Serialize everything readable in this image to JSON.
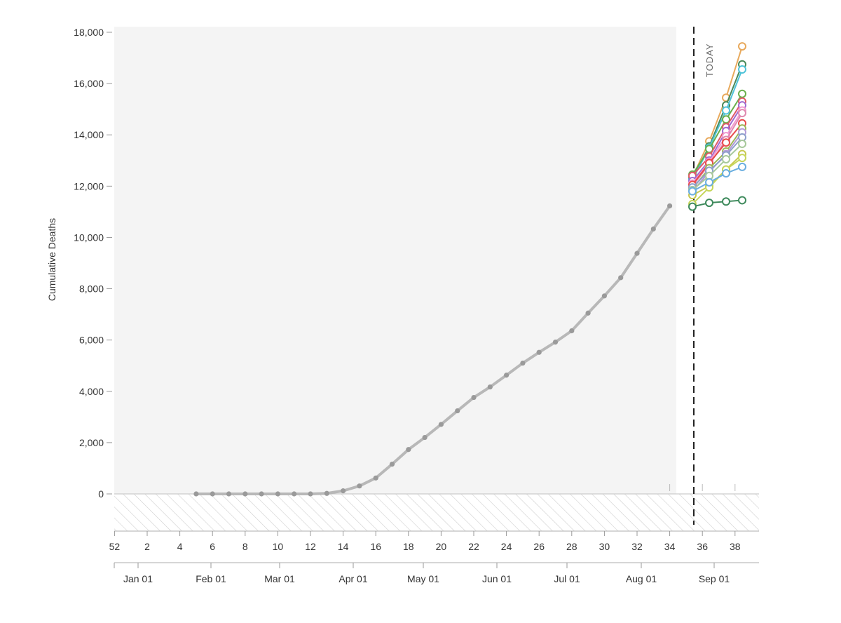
{
  "chart_data": {
    "type": "line",
    "ylabel": "Cumulative Deaths",
    "ylim": [
      -1450,
      18200
    ],
    "y_ticks": [
      0,
      2000,
      4000,
      6000,
      8000,
      10000,
      12000,
      14000,
      16000,
      18000
    ],
    "y_tick_labels": [
      "0",
      "2,000",
      "4,000",
      "6,000",
      "8,000",
      "10,000",
      "12,000",
      "14,000",
      "16,000",
      "18,000"
    ],
    "x_axis_week_ticks": [
      "52",
      "2",
      "4",
      "6",
      "8",
      "10",
      "12",
      "14",
      "16",
      "18",
      "20",
      "22",
      "24",
      "26",
      "28",
      "30",
      "32",
      "34",
      "36",
      "38"
    ],
    "x_axis_month_ticks": [
      "Jan 01",
      "Feb 01",
      "Mar 01",
      "Apr 01",
      "May 01",
      "Jun 01",
      "Jul 01",
      "Aug 01",
      "Sep 01"
    ],
    "today_label": "TODAY",
    "today_week": 35,
    "observed": {
      "name": "",
      "color": "#b8b8b8",
      "weeks": [
        5,
        6,
        7,
        8,
        9,
        10,
        11,
        12,
        13,
        14,
        15,
        16,
        17,
        18,
        19,
        20,
        21,
        22,
        23,
        24,
        25,
        26,
        27,
        28,
        29,
        30,
        31,
        32,
        33,
        34
      ],
      "values": [
        0,
        0,
        0,
        0,
        0,
        0,
        0,
        0,
        20,
        120,
        310,
        620,
        1160,
        1730,
        2200,
        2710,
        3240,
        3760,
        4170,
        4630,
        5100,
        5520,
        5920,
        6360,
        7050,
        7720,
        8430,
        9380,
        10330,
        11230
      ]
    },
    "forecast_weeks": [
      35,
      36,
      37,
      38
    ],
    "forecasts": [
      {
        "color": "#e8a95c",
        "values": [
          12350,
          13750,
          15450,
          17450
        ]
      },
      {
        "color": "#4a8a5a",
        "values": [
          12300,
          13550,
          15150,
          16750
        ]
      },
      {
        "color": "#4fc3d9",
        "values": [
          12250,
          13500,
          14950,
          16550
        ]
      },
      {
        "color": "#6ab04c",
        "values": [
          12450,
          13450,
          14600,
          15600
        ]
      },
      {
        "color": "#e05a6a",
        "values": [
          12400,
          13150,
          14300,
          15300
        ]
      },
      {
        "color": "#a06bd0",
        "values": [
          12200,
          13000,
          14150,
          15150
        ]
      },
      {
        "color": "#f39ad0",
        "values": [
          12100,
          12950,
          13950,
          14950
        ]
      },
      {
        "color": "#e08ab0",
        "values": [
          12000,
          12850,
          13800,
          14850
        ]
      },
      {
        "color": "#e84c4c",
        "values": [
          12050,
          12900,
          13700,
          14450
        ]
      },
      {
        "color": "#9db85a",
        "values": [
          11900,
          12700,
          13350,
          14250
        ]
      },
      {
        "color": "#b29bd8",
        "values": [
          11800,
          12550,
          13250,
          14100
        ]
      },
      {
        "color": "#8da0cb",
        "values": [
          11950,
          12600,
          13200,
          13900
        ]
      },
      {
        "color": "#a8c99b",
        "values": [
          11850,
          12400,
          13050,
          13650
        ]
      },
      {
        "color": "#c8c850",
        "values": [
          11650,
          12000,
          12650,
          13250
        ]
      },
      {
        "color": "#c6d65b",
        "values": [
          11300,
          11950,
          12650,
          13100
        ]
      },
      {
        "color": "#6aaee0",
        "values": [
          11800,
          12150,
          12500,
          12750
        ]
      },
      {
        "color": "#3e8a5c",
        "values": [
          11200,
          11350,
          11400,
          11450
        ]
      }
    ]
  }
}
